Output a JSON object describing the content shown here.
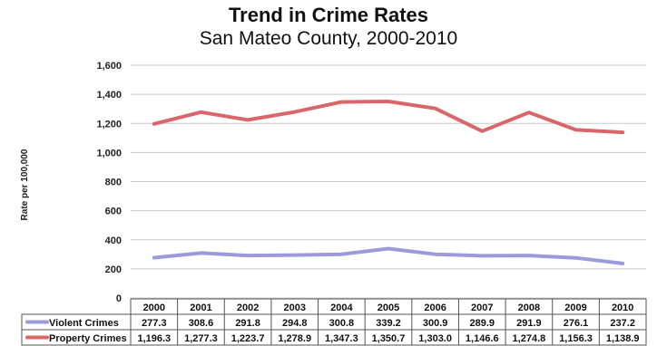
{
  "chart_data": {
    "type": "line",
    "title": "Trend in Crime Rates",
    "subtitle": "San Mateo County, 2000-2010",
    "ylabel": "Rate per 100,000",
    "xlabel": "",
    "ylim": [
      0,
      1600
    ],
    "yticks": [
      "0",
      "200",
      "400",
      "600",
      "800",
      "1,000",
      "1,200",
      "1,400",
      "1,600"
    ],
    "grid": "horizontal",
    "categories": [
      "2000",
      "2001",
      "2002",
      "2003",
      "2004",
      "2005",
      "2006",
      "2007",
      "2008",
      "2009",
      "2010"
    ],
    "series": [
      {
        "name": "Violent Crimes",
        "color": "#9b9bdc",
        "values": [
          277.3,
          308.6,
          291.8,
          294.8,
          300.8,
          339.2,
          300.9,
          289.9,
          291.9,
          276.1,
          237.2
        ],
        "labels": [
          "277.3",
          "308.6",
          "291.8",
          "294.8",
          "300.8",
          "339.2",
          "300.9",
          "289.9",
          "291.9",
          "276.1",
          "237.2"
        ]
      },
      {
        "name": "Property Crimes",
        "color": "#d9666a",
        "values": [
          1196.3,
          1277.3,
          1223.7,
          1278.9,
          1347.3,
          1350.7,
          1303.0,
          1146.6,
          1274.8,
          1156.3,
          1138.9
        ],
        "labels": [
          "1,196.3",
          "1,277.3",
          "1,223.7",
          "1,278.9",
          "1,347.3",
          "1,350.7",
          "1,303.0",
          "1,146.6",
          "1,274.8",
          "1,156.3",
          "1,138.9"
        ]
      }
    ]
  }
}
